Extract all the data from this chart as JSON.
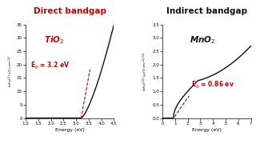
{
  "left_title": "Direct bandgap",
  "right_title": "Indirect bandgap",
  "left_material": "TiO$_2$",
  "right_material": "MnO$_2$",
  "left_Eg": "E$_g$ = 3.2 eV",
  "right_Eg": "E$_g$ = 0.86 ev",
  "left_ylabel": "($\\alpha$h$\\nu$)$^2$ (eV cm$^{-1}$)$^2$",
  "right_ylabel": "($\\alpha$h$\\nu$)$^{1/2}$ ($\\mu$eV cm$^{-1}$)$^{1/2}$",
  "xlabel": "Energy (eV)",
  "left_xlim": [
    1.0,
    4.5
  ],
  "left_ylim": [
    0,
    35
  ],
  "right_xlim": [
    0,
    7
  ],
  "right_ylim": [
    0.0,
    3.5
  ],
  "left_xticks": [
    1.0,
    1.5,
    2.0,
    2.5,
    3.0,
    3.5,
    4.0,
    4.5
  ],
  "right_xticks": [
    0,
    1,
    2,
    3,
    4,
    5,
    6,
    7
  ],
  "left_yticks": [
    0,
    5,
    10,
    15,
    20,
    25,
    30,
    35
  ],
  "right_yticks": [
    0.0,
    0.5,
    1.0,
    1.5,
    2.0,
    2.5,
    3.0,
    3.5
  ],
  "left_title_color": "#cc0000",
  "right_title_color": "#111111",
  "left_material_color": "#cc0000",
  "right_material_color": "#111111",
  "left_Eg_color": "#cc0000",
  "right_Eg_color": "#cc0000",
  "curve_color": "#111111",
  "dashed_color": "#cc0000",
  "bg_color": "#ffffff"
}
